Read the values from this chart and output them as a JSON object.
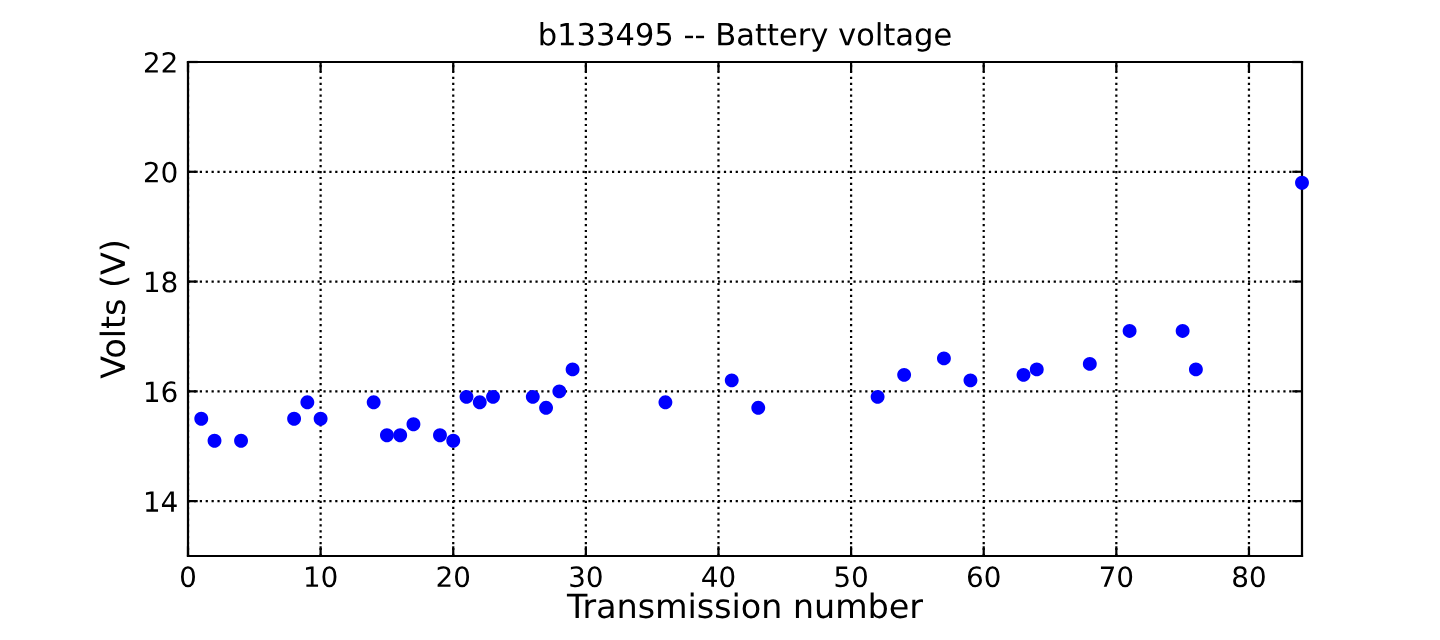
{
  "chart_data": {
    "type": "scatter",
    "title": "b133495 -- Battery voltage",
    "xlabel": "Transmission number",
    "ylabel": "Volts (V)",
    "x": [
      1,
      2,
      4,
      8,
      9,
      10,
      14,
      15,
      16,
      17,
      19,
      20,
      21,
      22,
      23,
      26,
      27,
      28,
      29,
      36,
      41,
      43,
      52,
      54,
      57,
      59,
      63,
      64,
      68,
      71,
      75,
      76,
      84
    ],
    "series": [
      {
        "color": "#0000ff",
        "values": [
          15.5,
          15.1,
          15.1,
          15.5,
          15.8,
          15.5,
          15.8,
          15.2,
          15.2,
          15.4,
          15.2,
          15.1,
          15.9,
          15.8,
          15.9,
          15.9,
          15.7,
          16.0,
          16.4,
          15.8,
          16.2,
          15.7,
          15.9,
          16.3,
          16.6,
          16.2,
          16.3,
          16.4,
          16.5,
          17.1,
          17.1,
          16.4,
          19.8
        ]
      }
    ],
    "xlim": [
      0,
      84
    ],
    "xticks": [
      0,
      10,
      20,
      30,
      40,
      50,
      60,
      70,
      80
    ],
    "ylim": [
      13,
      22
    ],
    "yticks": [
      14,
      16,
      18,
      20,
      22
    ],
    "grid": true,
    "marker": "circle"
  }
}
